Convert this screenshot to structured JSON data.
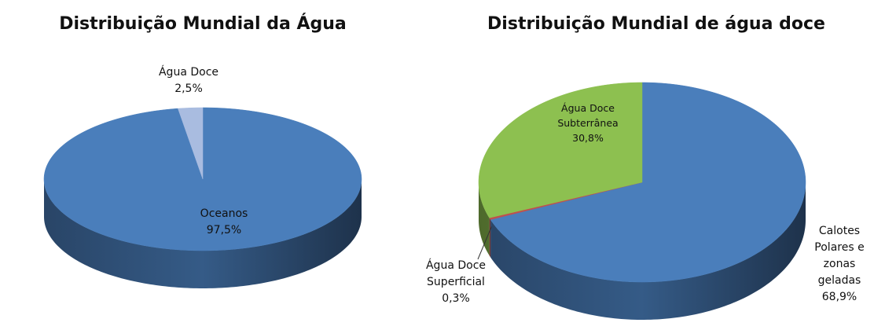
{
  "chart_data": [
    {
      "type": "pie3d",
      "title": "Distribuição Mundial da Água",
      "categories": [
        "Oceanos",
        "Água Doce"
      ],
      "values": [
        97.5,
        2.5
      ],
      "value_labels": [
        "97,5%",
        "2,5%"
      ],
      "colors": [
        "#4a7ebb",
        "#a9bce0"
      ]
    },
    {
      "type": "pie3d",
      "title": "Distribuição Mundial de água doce",
      "categories": [
        "Calotes Polares e zonas geladas",
        "Água Doce Superficial",
        "Água Doce Subterrânea"
      ],
      "values": [
        68.9,
        0.3,
        30.8
      ],
      "value_labels": [
        "68,9%",
        "0,3%",
        "30,8%"
      ],
      "colors": [
        "#4a7ebb",
        "#c0504d",
        "#8dc050"
      ]
    }
  ]
}
